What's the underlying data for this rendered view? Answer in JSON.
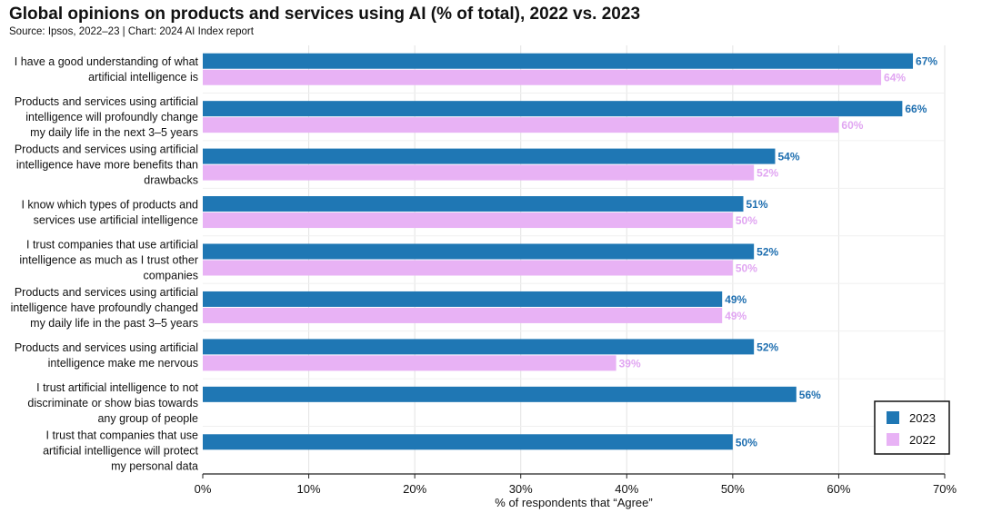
{
  "chart_data": {
    "type": "bar",
    "orientation": "horizontal",
    "title": "Global opinions on products and services using AI (% of total), 2022 vs. 2023",
    "subtitle": "Source: Ipsos, 2022–23 | Chart: 2024 AI Index report",
    "xlabel": "% of respondents that “Agree”",
    "ylabel": "",
    "xlim": [
      0,
      70
    ],
    "x_ticks": [
      "0%",
      "10%",
      "20%",
      "30%",
      "40%",
      "50%",
      "60%",
      "70%"
    ],
    "grid": "vertical",
    "legend_position": "bottom-right",
    "categories": [
      [
        "I have a good understanding of what",
        "artificial intelligence is"
      ],
      [
        "Products and services using artificial",
        "intelligence will profoundly change",
        "my daily life in the next 3–5 years"
      ],
      [
        "Products and services using artificial",
        "intelligence have more benefits than",
        "drawbacks"
      ],
      [
        "I know which types of products and",
        "services use artificial intelligence"
      ],
      [
        "I trust companies that use artificial",
        "intelligence as much as I trust other",
        "companies"
      ],
      [
        "Products and services using artificial",
        "intelligence have profoundly changed",
        "my daily life in the past 3–5 years"
      ],
      [
        "Products and services using artificial",
        "intelligence make me nervous"
      ],
      [
        "I trust artificial intelligence to not",
        "discriminate or show bias towards",
        "any group of people"
      ],
      [
        "I trust that companies that use",
        "artificial intelligence will protect",
        "my personal data"
      ]
    ],
    "series": [
      {
        "name": "2023",
        "color": "#1f77b4",
        "label_color": "#1f6fb0",
        "values": [
          67,
          66,
          54,
          51,
          52,
          49,
          52,
          56,
          50
        ],
        "labels": [
          "67%",
          "66%",
          "54%",
          "51%",
          "52%",
          "49%",
          "52%",
          "56%",
          "50%"
        ]
      },
      {
        "name": "2022",
        "color": "#e8b2f5",
        "label_color": "#e1a6f2",
        "values": [
          64,
          60,
          52,
          50,
          50,
          49,
          39,
          null,
          null
        ],
        "labels": [
          "64%",
          "60%",
          "52%",
          "50%",
          "50%",
          "49%",
          "39%",
          "",
          ""
        ]
      }
    ]
  }
}
